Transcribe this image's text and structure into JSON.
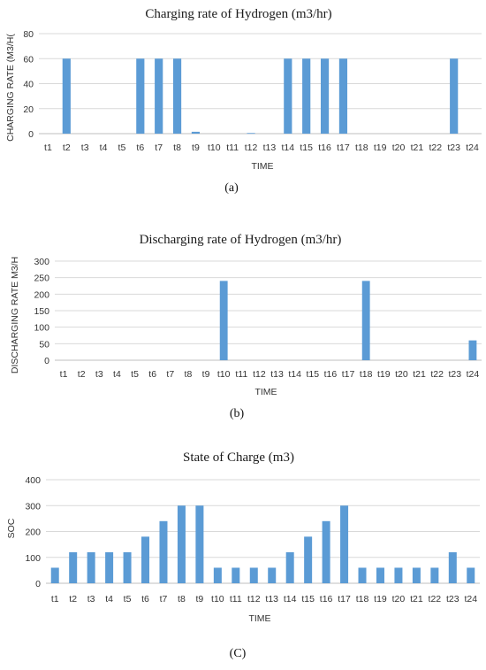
{
  "chart_data": [
    {
      "type": "bar",
      "title": "Charging rate of Hydrogen (m3/hr)",
      "xlabel": "TIME",
      "ylabel": "CHARGING RATE (M3/H(",
      "ylim": [
        0,
        80
      ],
      "yticks": [
        0,
        20,
        40,
        60,
        80
      ],
      "grid": true,
      "bar_color": "#5b9bd5",
      "caption": "(a)",
      "categories": [
        "t1",
        "t2",
        "t3",
        "t4",
        "t5",
        "t6",
        "t7",
        "t8",
        "t9",
        "t10",
        "t11",
        "t12",
        "t13",
        "t14",
        "t15",
        "t16",
        "t17",
        "t18",
        "t19",
        "t20",
        "t21",
        "t22",
        "t23",
        "t24"
      ],
      "values": [
        0,
        60,
        0,
        0,
        0,
        60,
        60,
        60,
        1.5,
        0,
        0,
        0.5,
        0,
        60,
        60,
        60,
        60,
        0,
        0,
        0,
        0,
        0,
        60,
        0
      ]
    },
    {
      "type": "bar",
      "title": "Discharging rate of Hydrogen (m3/hr)",
      "xlabel": "TIME",
      "ylabel": "DISCHARGING RATE M3/H",
      "ylim": [
        0,
        300
      ],
      "yticks": [
        0,
        50,
        100,
        150,
        200,
        250,
        300
      ],
      "grid": true,
      "bar_color": "#5b9bd5",
      "caption": "(b)",
      "categories": [
        "t1",
        "t2",
        "t3",
        "t4",
        "t5",
        "t6",
        "t7",
        "t8",
        "t9",
        "t10",
        "t11",
        "t12",
        "t13",
        "t14",
        "t15",
        "t16",
        "t17",
        "t18",
        "t19",
        "t20",
        "t21",
        "t22",
        "t23",
        "t24"
      ],
      "values": [
        0,
        0,
        0,
        0,
        0,
        0,
        0,
        0,
        0,
        240,
        0,
        0,
        0,
        0,
        0,
        0,
        0,
        240,
        0,
        0,
        0,
        0,
        0,
        60
      ]
    },
    {
      "type": "bar",
      "title": "State of Charge (m3)",
      "xlabel": "TIME",
      "ylabel": "SOC",
      "ylim": [
        0,
        400
      ],
      "yticks": [
        0,
        100,
        200,
        300,
        400
      ],
      "grid": true,
      "bar_color": "#5b9bd5",
      "caption": "(C)",
      "categories": [
        "t1",
        "t2",
        "t3",
        "t4",
        "t5",
        "t6",
        "t7",
        "t8",
        "t9",
        "t10",
        "t11",
        "t12",
        "t13",
        "t14",
        "t15",
        "t16",
        "t17",
        "t18",
        "t19",
        "t20",
        "t21",
        "t22",
        "t23",
        "t24"
      ],
      "values": [
        60,
        120,
        120,
        120,
        120,
        180,
        240,
        300,
        300,
        60,
        60,
        60,
        60,
        120,
        180,
        240,
        300,
        60,
        60,
        60,
        60,
        60,
        120,
        60
      ]
    }
  ]
}
